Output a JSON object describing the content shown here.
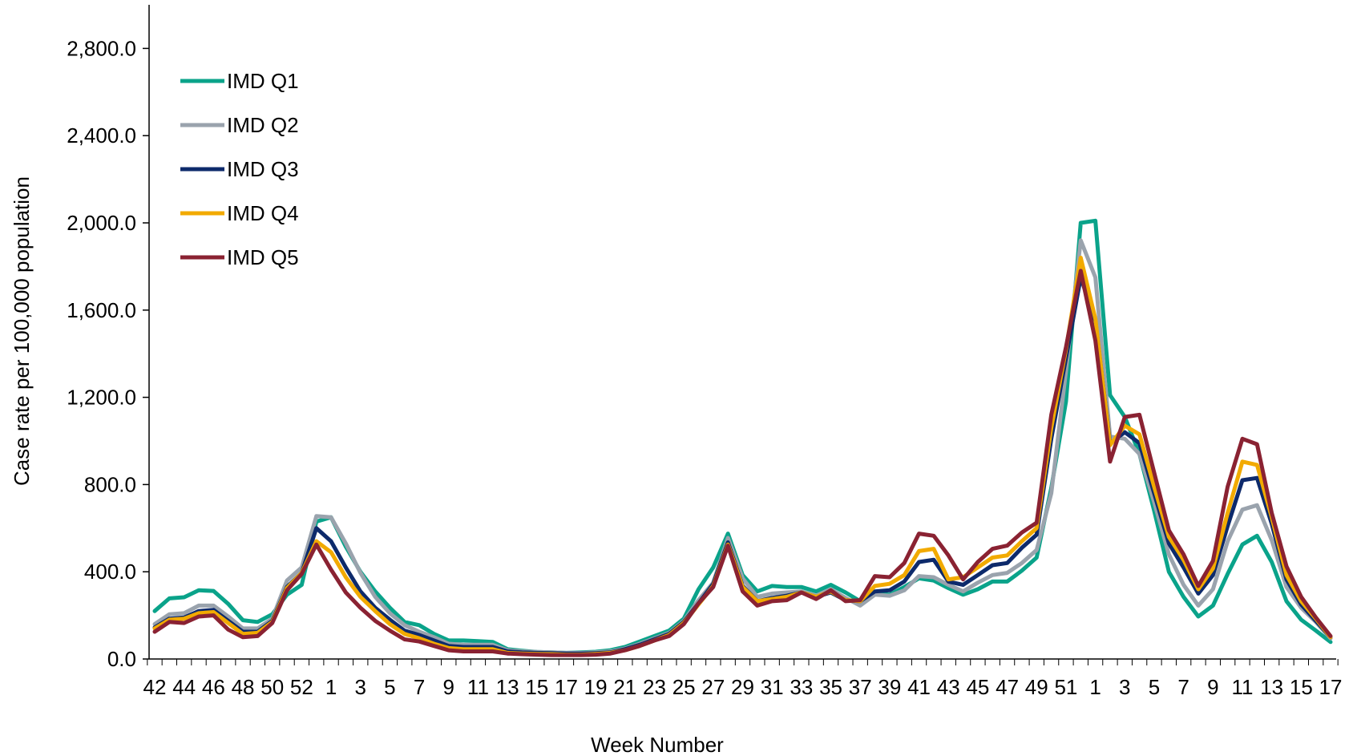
{
  "chart_data": {
    "type": "line",
    "title": "",
    "xlabel": "Week Number",
    "ylabel": "Case rate per 100,000 population",
    "ylim": [
      0,
      3000
    ],
    "yticks": [
      0,
      400,
      800,
      1200,
      1600,
      2000,
      2400,
      2800
    ],
    "ytick_labels": [
      "0.0",
      "400.0",
      "800.0",
      "1,200.0",
      "1,600.0",
      "2,000.0",
      "2,400.0",
      "2,800.0"
    ],
    "legend_position": "top-left",
    "grid": false,
    "x": [
      "42",
      "43",
      "44",
      "45",
      "46",
      "47",
      "48",
      "49",
      "50",
      "51",
      "52",
      "53",
      "1",
      "2",
      "3",
      "4",
      "5",
      "6",
      "7",
      "8",
      "9",
      "10",
      "11",
      "12",
      "13",
      "14",
      "15",
      "16",
      "17",
      "18",
      "19",
      "20",
      "21",
      "22",
      "23",
      "24",
      "25",
      "26",
      "27",
      "28",
      "29",
      "30",
      "31",
      "32",
      "33",
      "34",
      "35",
      "36",
      "37",
      "38",
      "39",
      "40",
      "41",
      "42",
      "43",
      "44",
      "45",
      "46",
      "47",
      "48",
      "49",
      "50",
      "51",
      "52",
      "1",
      "2",
      "3",
      "4",
      "5",
      "6",
      "7",
      "8",
      "9",
      "10",
      "11",
      "12",
      "13",
      "14",
      "15",
      "16",
      "17"
    ],
    "x_tick_labels": [
      "42",
      "44",
      "46",
      "48",
      "50",
      "52",
      "1",
      "3",
      "5",
      "7",
      "9",
      "11",
      "13",
      "15",
      "17",
      "19",
      "21",
      "23",
      "25",
      "27",
      "29",
      "31",
      "33",
      "35",
      "37",
      "39",
      "41",
      "43",
      "45",
      "47",
      "49",
      "51",
      "1",
      "3",
      "5",
      "7",
      "9",
      "11",
      "13",
      "15",
      "17"
    ],
    "series": [
      {
        "name": "IMD Q1",
        "color": "#0aa38a",
        "values": [
          220,
          278,
          283,
          315,
          312,
          253,
          178,
          170,
          205,
          295,
          340,
          630,
          650,
          515,
          400,
          310,
          235,
          170,
          155,
          115,
          85,
          85,
          82,
          78,
          45,
          38,
          32,
          30,
          28,
          30,
          33,
          40,
          55,
          80,
          105,
          130,
          185,
          320,
          420,
          575,
          385,
          310,
          335,
          330,
          330,
          310,
          340,
          305,
          265,
          300,
          295,
          330,
          370,
          360,
          325,
          295,
          320,
          355,
          355,
          405,
          465,
          785,
          1180,
          2000,
          2010,
          1210,
          1110,
          940,
          680,
          400,
          285,
          195,
          245,
          390,
          525,
          565,
          445,
          265,
          180,
          130,
          78
        ]
      },
      {
        "name": "IMD Q2",
        "color": "#9aa3ad",
        "values": [
          160,
          205,
          210,
          245,
          245,
          195,
          140,
          140,
          185,
          360,
          420,
          655,
          650,
          530,
          395,
          285,
          210,
          155,
          125,
          100,
          70,
          65,
          65,
          65,
          40,
          35,
          32,
          30,
          28,
          28,
          30,
          35,
          48,
          70,
          95,
          120,
          175,
          270,
          350,
          555,
          370,
          285,
          300,
          305,
          310,
          290,
          320,
          280,
          245,
          295,
          290,
          315,
          380,
          375,
          340,
          310,
          350,
          385,
          395,
          440,
          500,
          760,
          1320,
          1920,
          1750,
          1020,
          1010,
          940,
          720,
          480,
          340,
          245,
          320,
          540,
          685,
          705,
          545,
          330,
          235,
          170,
          95
        ]
      },
      {
        "name": "IMD Q3",
        "color": "#0d2a6b",
        "values": [
          145,
          185,
          190,
          220,
          225,
          175,
          125,
          125,
          175,
          330,
          395,
          600,
          540,
          420,
          310,
          235,
          180,
          130,
          110,
          85,
          60,
          55,
          55,
          55,
          35,
          30,
          28,
          27,
          25,
          25,
          27,
          30,
          45,
          65,
          90,
          115,
          170,
          255,
          345,
          535,
          335,
          265,
          280,
          290,
          305,
          285,
          305,
          270,
          265,
          310,
          315,
          355,
          445,
          455,
          355,
          340,
          385,
          430,
          440,
          510,
          570,
          1010,
          1380,
          1750,
          1550,
          990,
          1040,
          990,
          760,
          530,
          420,
          300,
          385,
          610,
          820,
          830,
          620,
          365,
          250,
          175,
          100
        ]
      },
      {
        "name": "IMD Q4",
        "color": "#f2aa00",
        "values": [
          140,
          180,
          185,
          210,
          215,
          165,
          115,
          120,
          170,
          325,
          395,
          540,
          490,
          375,
          285,
          220,
          160,
          115,
          95,
          70,
          50,
          45,
          45,
          45,
          28,
          25,
          23,
          22,
          20,
          20,
          23,
          28,
          40,
          60,
          85,
          110,
          165,
          250,
          335,
          525,
          330,
          265,
          275,
          285,
          305,
          285,
          310,
          270,
          265,
          335,
          345,
          385,
          495,
          505,
          365,
          375,
          420,
          465,
          475,
          540,
          600,
          1060,
          1420,
          1840,
          1560,
          980,
          1070,
          1030,
          790,
          560,
          455,
          320,
          415,
          670,
          905,
          890,
          650,
          385,
          265,
          185,
          100
        ]
      },
      {
        "name": "IMD Q5",
        "color": "#8a2232",
        "values": [
          125,
          170,
          165,
          195,
          200,
          135,
          100,
          105,
          165,
          315,
          390,
          525,
          410,
          305,
          235,
          175,
          130,
          90,
          80,
          60,
          40,
          35,
          35,
          35,
          25,
          22,
          20,
          18,
          18,
          18,
          20,
          25,
          40,
          60,
          85,
          105,
          160,
          255,
          330,
          520,
          310,
          245,
          265,
          270,
          305,
          275,
          315,
          265,
          270,
          380,
          375,
          440,
          575,
          565,
          475,
          365,
          445,
          505,
          520,
          580,
          625,
          1120,
          1430,
          1780,
          1460,
          905,
          1110,
          1120,
          855,
          590,
          480,
          335,
          450,
          790,
          1010,
          985,
          670,
          425,
          285,
          190,
          105
        ]
      }
    ]
  }
}
